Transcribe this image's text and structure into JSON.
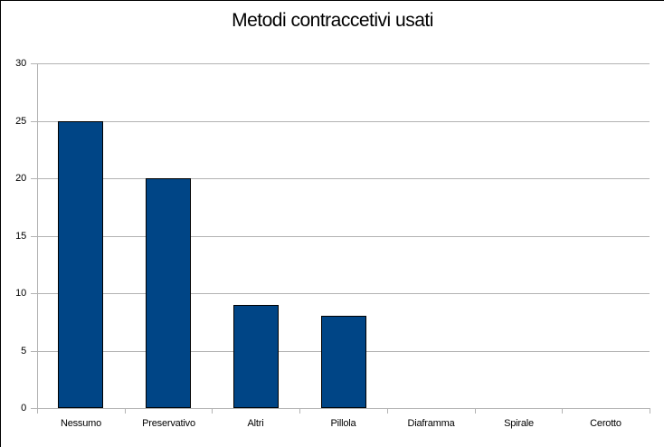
{
  "title": "Metodi contraccetivi usati",
  "chart_data": {
    "type": "bar",
    "title": "Metodi contraccetivi usati",
    "categories": [
      "Nessumo",
      "Preservativo",
      "Altri",
      "Pillola",
      "Diaframma",
      "Spirale",
      "Cerotto"
    ],
    "values": [
      25,
      20,
      9,
      8,
      0,
      0,
      0
    ],
    "xlabel": "",
    "ylabel": "",
    "ylim": [
      0,
      30
    ],
    "ytick_step": 5,
    "yticks": [
      0,
      5,
      10,
      15,
      20,
      25,
      30
    ],
    "grid": true,
    "legend": "none"
  },
  "colors": {
    "background": "#ffffff",
    "frame_border": "#000000",
    "bar_fill": "#004586",
    "bar_border": "#000000",
    "grid_line": "#b3b3b3",
    "axis_line": "#b3b3b3",
    "text": "#000000"
  }
}
